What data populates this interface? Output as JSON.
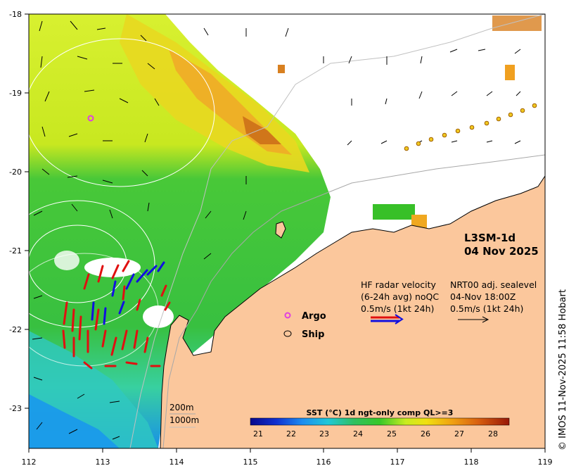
{
  "map": {
    "product": "L3SM-1d",
    "date": "04 Nov 2025",
    "lon_ticks": [
      "112",
      "113",
      "114",
      "115",
      "116",
      "117",
      "118",
      "119"
    ],
    "lat_ticks": [
      "-18",
      "-19",
      "-20",
      "-21",
      "-22",
      "-23"
    ],
    "lon_range": [
      112,
      119
    ],
    "lat_range": [
      -23.5,
      -18
    ]
  },
  "radar_legend": {
    "line1": "HF radar velocity",
    "line2": "(6-24h avg) noQC",
    "line3": "0.5m/s (1kt 24h)"
  },
  "sealevel_legend": {
    "line1": "NRT00 adj. sealevel",
    "line2": "04-Nov 18:00Z",
    "line3": "0.5m/s (1kt 24h)"
  },
  "markers": {
    "argo_label": "Argo",
    "ship_label": "Ship",
    "argo_color": "#e040e0"
  },
  "bathymetry": {
    "label_200": "200m",
    "label_1000": "1000m"
  },
  "colorbar": {
    "title": "SST (°C) 1d ngt-only comp QL>=3",
    "ticks": [
      "21",
      "22",
      "23",
      "24",
      "25",
      "26",
      "27",
      "28"
    ],
    "range": [
      20.5,
      28.5
    ]
  },
  "credit": "© IMOS 11-Nov-2025 11:58 Hobart",
  "colors": {
    "land": "#fbc79c",
    "radar_red": "#e01010",
    "radar_blue": "#1010e0"
  }
}
